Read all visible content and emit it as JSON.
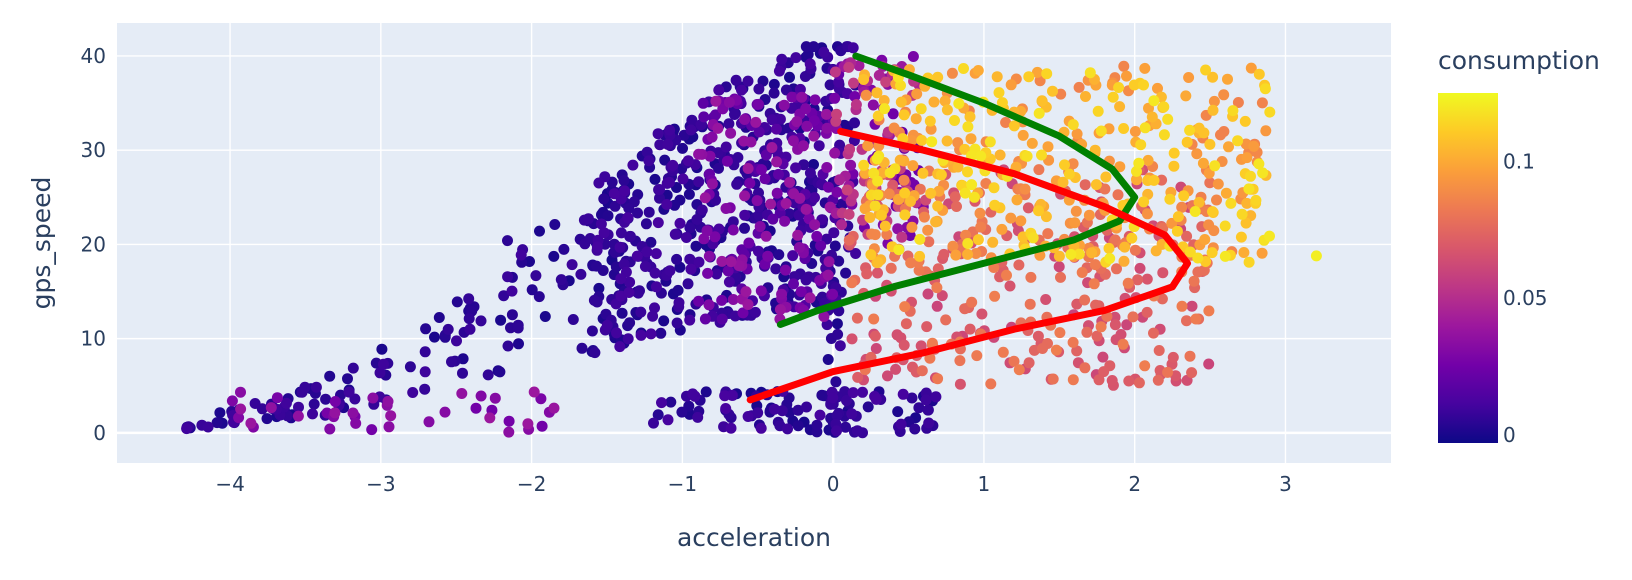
{
  "chart_data": {
    "type": "scatter",
    "xlabel": "acceleration",
    "ylabel": "gps_speed",
    "xlim": [
      -4.75,
      3.7
    ],
    "ylim": [
      -3.2,
      43.5
    ],
    "x_ticks": [
      -4,
      -3,
      -2,
      -1,
      0,
      1,
      2,
      3
    ],
    "x_tick_labels": [
      "−4",
      "−3",
      "−2",
      "−1",
      "0",
      "1",
      "2",
      "3"
    ],
    "y_ticks": [
      0,
      10,
      20,
      30,
      40
    ],
    "y_tick_labels": [
      "0",
      "10",
      "20",
      "30",
      "40"
    ],
    "grid": true,
    "plot_background": "#e5ecf6",
    "colorbar": {
      "title": "consumption",
      "range": [
        -0.003,
        0.125
      ],
      "ticks": [
        0,
        0.05,
        0.1
      ],
      "tick_labels": [
        "0",
        "0.05",
        "0.1"
      ],
      "colorscale": [
        "#0d0887",
        "#46039f",
        "#7201a8",
        "#9c179e",
        "#bd3786",
        "#d8576b",
        "#ed7953",
        "#fb9f3a",
        "#fdca26",
        "#f0f921"
      ]
    },
    "scatter_groups": [
      {
        "x_range": [
          -4.3,
          -1.6
        ],
        "y_range": [
          0,
          27
        ],
        "c_range": [
          0,
          0.01
        ],
        "n": 130,
        "y_trend": [
          [
            -4.3,
            1
          ],
          [
            -3.4,
            5
          ],
          [
            -2.6,
            12
          ],
          [
            -1.8,
            24
          ]
        ]
      },
      {
        "x_range": [
          -4.0,
          -1.8
        ],
        "y_range": [
          0,
          4.5
        ],
        "c_range": [
          0.025,
          0.04
        ],
        "n": 40,
        "y_trend": null
      },
      {
        "x_range": [
          -1.6,
          0.15
        ],
        "y_range": [
          8,
          41
        ],
        "c_range": [
          0,
          0.012
        ],
        "n": 520,
        "y_trend": [
          [
            -1.6,
            24
          ],
          [
            -0.8,
            33
          ],
          [
            0.1,
            40
          ]
        ]
      },
      {
        "x_range": [
          -0.9,
          0.0
        ],
        "y_range": [
          12,
          36
        ],
        "c_range": [
          0.015,
          0.04
        ],
        "n": 160,
        "y_trend": null
      },
      {
        "x_range": [
          -1.2,
          0.7
        ],
        "y_range": [
          0,
          4.5
        ],
        "c_range": [
          0,
          0.012
        ],
        "n": 110,
        "y_trend": null
      },
      {
        "x_range": [
          -0.05,
          0.05
        ],
        "y_range": [
          0,
          20
        ],
        "c_range": [
          0,
          0.01
        ],
        "n": 25,
        "y_trend": null
      },
      {
        "x_range": [
          0.0,
          0.6
        ],
        "y_range": [
          20,
          40
        ],
        "c_range": [
          0.02,
          0.06
        ],
        "n": 110,
        "y_trend": null
      },
      {
        "x_range": [
          0.1,
          2.5
        ],
        "y_range": [
          5,
          28
        ],
        "c_range": [
          0.06,
          0.085
        ],
        "n": 320,
        "y_trend": null
      },
      {
        "x_range": [
          0.2,
          2.9
        ],
        "y_range": [
          18,
          39
        ],
        "c_range": [
          0.085,
          0.12
        ],
        "n": 420,
        "y_trend": null
      },
      {
        "x_range": [
          3.2,
          3.23
        ],
        "y_range": [
          18.5,
          18.9
        ],
        "c_range": [
          0.12,
          0.125
        ],
        "n": 1,
        "y_trend": null
      }
    ],
    "series": [
      {
        "color": "#008000",
        "points": [
          [
            0.15,
            40.0
          ],
          [
            0.5,
            38.0
          ],
          [
            1.0,
            35.0
          ],
          [
            1.5,
            31.5
          ],
          [
            1.85,
            28.0
          ],
          [
            2.0,
            25.0
          ],
          [
            1.9,
            22.5
          ],
          [
            1.6,
            20.5
          ],
          [
            1.0,
            18.0
          ],
          [
            0.4,
            15.5
          ],
          [
            -0.1,
            13.0
          ],
          [
            -0.35,
            11.5
          ]
        ]
      },
      {
        "color": "#ff0000",
        "points": [
          [
            0.05,
            32.0
          ],
          [
            0.6,
            30.0
          ],
          [
            1.2,
            27.5
          ],
          [
            1.8,
            24.0
          ],
          [
            2.2,
            21.0
          ],
          [
            2.35,
            18.0
          ],
          [
            2.25,
            15.5
          ],
          [
            1.8,
            13.0
          ],
          [
            1.2,
            11.0
          ],
          [
            0.6,
            8.5
          ],
          [
            0.0,
            6.5
          ],
          [
            -0.55,
            3.5
          ]
        ]
      }
    ]
  }
}
